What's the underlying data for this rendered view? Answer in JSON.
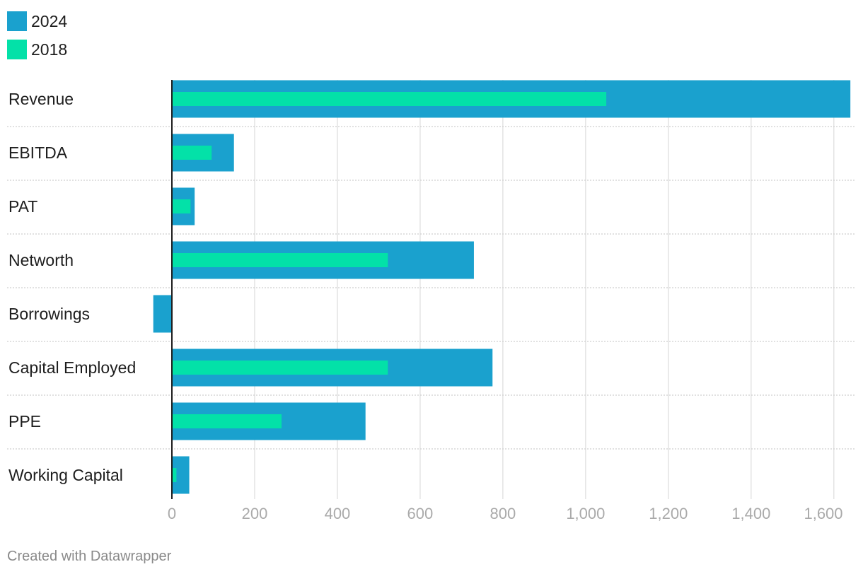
{
  "chart_data": {
    "type": "bar",
    "orientation": "horizontal",
    "categories": [
      "Revenue",
      "EBITDA",
      "PAT",
      "Networth",
      "Borrowings",
      "Capital Employed",
      "PPE",
      "Working Capital"
    ],
    "series": [
      {
        "name": "2024",
        "color": "#1aa1ce",
        "values": [
          1640,
          150,
          55,
          730,
          -45,
          775,
          468,
          42
        ]
      },
      {
        "name": "2018",
        "color": "#03e1a8",
        "values": [
          1050,
          96,
          45,
          522,
          0,
          522,
          265,
          11
        ]
      }
    ],
    "xlim": [
      -40,
      1650
    ],
    "xticks": [
      0,
      200,
      400,
      600,
      800,
      1000,
      1200,
      1400,
      1600
    ],
    "xtick_labels": [
      "0",
      "200",
      "400",
      "600",
      "800",
      "1,000",
      "1,200",
      "1,400",
      "1,600"
    ],
    "grid": true,
    "legend_position": "top-left"
  },
  "footer": {
    "credit": "Created with Datawrapper"
  }
}
